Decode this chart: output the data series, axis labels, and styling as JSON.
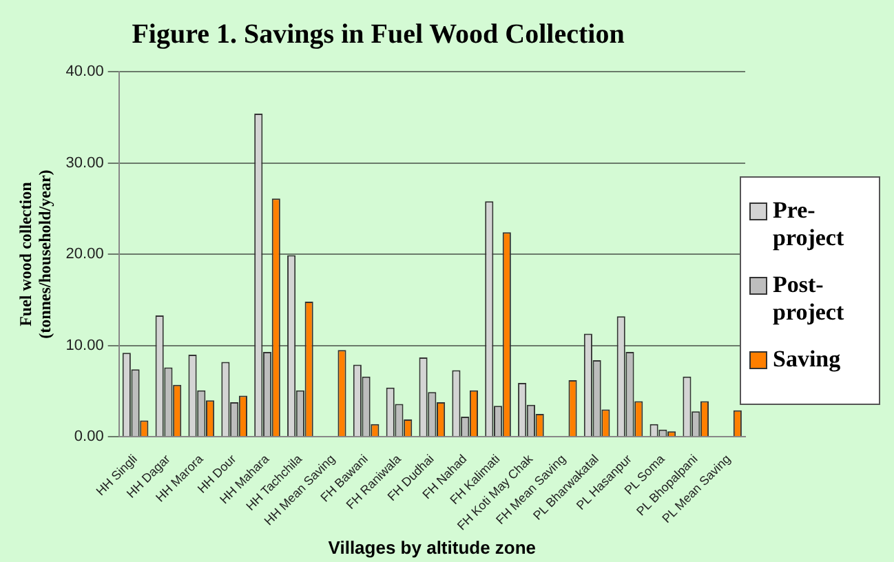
{
  "chart_data": {
    "type": "bar",
    "title": "Figure 1. Savings in Fuel Wood Collection",
    "xlabel": "Villages by altitude zone",
    "ylabel": "Fuel wood collection (tonnes/household/year)",
    "categories": [
      "HH Singli",
      "HH Dagar",
      "HH Marora",
      "HH Dour",
      "HH Mahara",
      "HH Tachchila",
      "HH Mean Saving",
      "FH Bawani",
      "FH Raniwala",
      "FH Dudhai",
      "FH Nahad",
      "FH Kalimati",
      "FH Koti May Chak",
      "FH Mean Saving",
      "PL Bharwakatal",
      "PL Hasanpur",
      "PL Soma",
      "PL Bhopalpani",
      "PL Mean Saving"
    ],
    "series": [
      {
        "name": "Pre-project",
        "color": "#d4d4d4",
        "values": [
          9.2,
          13.3,
          9.0,
          8.2,
          35.4,
          19.9,
          null,
          7.9,
          5.4,
          8.7,
          7.3,
          25.8,
          5.9,
          null,
          11.3,
          13.2,
          1.4,
          6.6,
          null
        ]
      },
      {
        "name": "Post-project",
        "color": "#bdbdbd",
        "values": [
          7.4,
          7.6,
          5.1,
          3.8,
          9.3,
          5.1,
          null,
          6.6,
          3.6,
          4.9,
          2.2,
          3.4,
          3.5,
          null,
          8.4,
          9.3,
          0.8,
          2.8,
          null
        ]
      },
      {
        "name": "Saving",
        "color": "#ff7f00",
        "values": [
          1.8,
          5.7,
          4.0,
          4.5,
          26.1,
          14.8,
          9.5,
          1.4,
          1.9,
          3.8,
          5.1,
          22.4,
          2.5,
          6.2,
          3.0,
          3.9,
          0.6,
          3.9,
          2.9
        ]
      }
    ],
    "ylim": [
      0,
      40
    ],
    "yticks": [
      {
        "value": 0,
        "label": "0.00"
      },
      {
        "value": 10,
        "label": "10.00"
      },
      {
        "value": 20,
        "label": "20.00"
      },
      {
        "value": 30,
        "label": "30.00"
      },
      {
        "value": 40,
        "label": "40.00"
      }
    ],
    "grid": "y",
    "legend": "right"
  }
}
